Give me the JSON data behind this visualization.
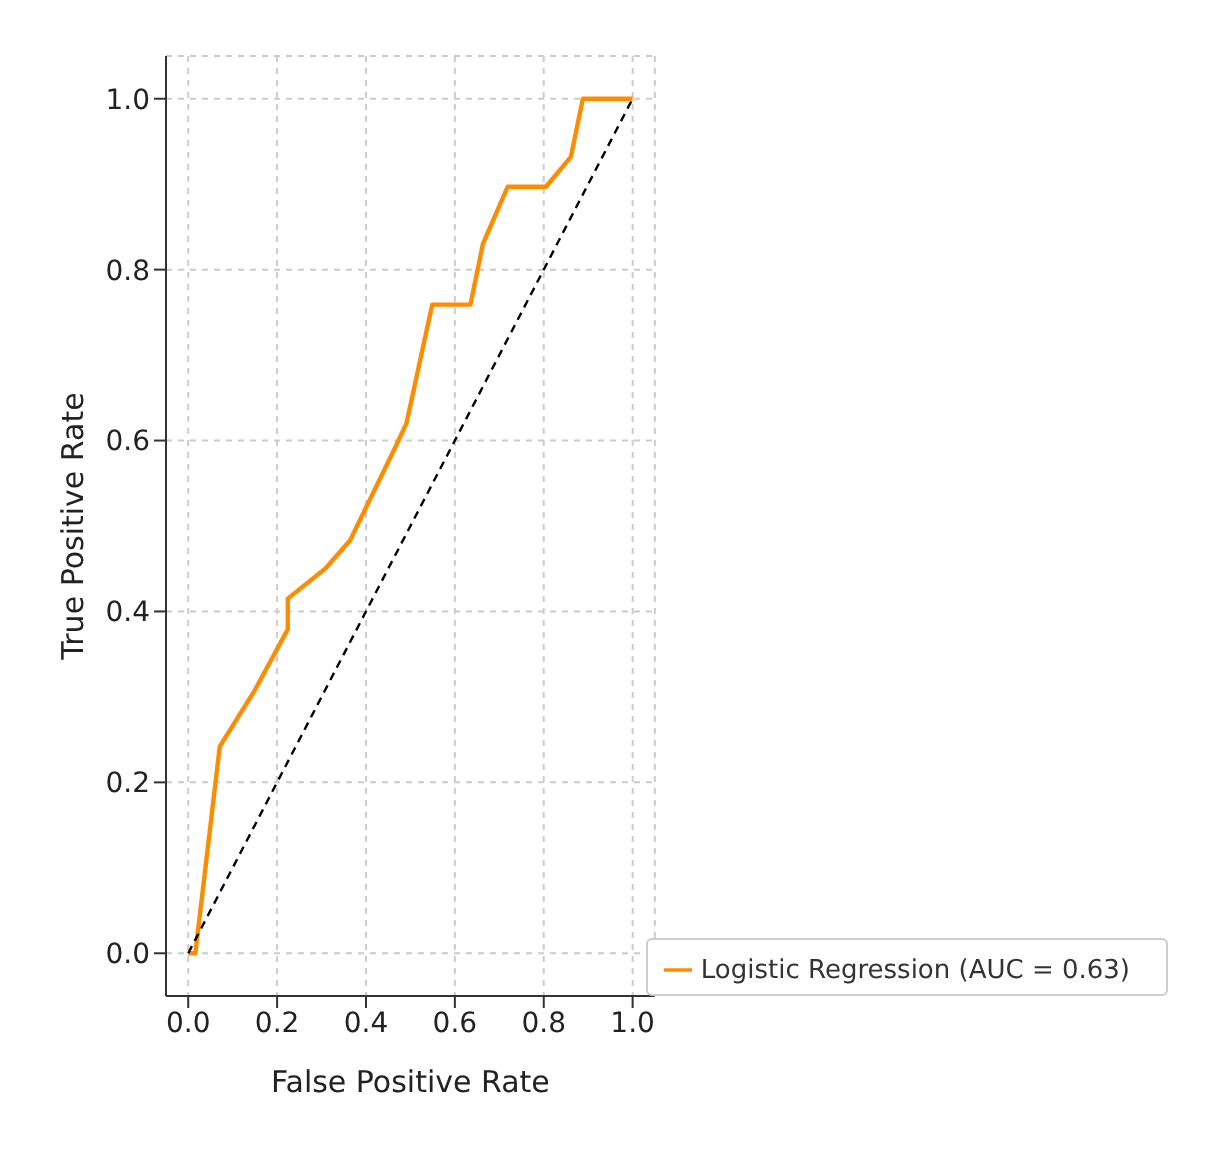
{
  "chart_data": {
    "type": "line",
    "xlabel": "False Positive Rate",
    "ylabel": "True Positive Rate",
    "xlim": [
      -0.05,
      1.05
    ],
    "ylim": [
      -0.05,
      1.05
    ],
    "xticks": [
      {
        "value": 0,
        "label": "0.0"
      },
      {
        "value": 0.2,
        "label": "0.2"
      },
      {
        "value": 0.4,
        "label": "0.4"
      },
      {
        "value": 0.6,
        "label": "0.6"
      },
      {
        "value": 0.8,
        "label": "0.8"
      },
      {
        "value": 1,
        "label": "1.0"
      }
    ],
    "yticks": [
      {
        "value": 0,
        "label": "0.0"
      },
      {
        "value": 0.2,
        "label": "0.2"
      },
      {
        "value": 0.4,
        "label": "0.4"
      },
      {
        "value": 0.6,
        "label": "0.6"
      },
      {
        "value": 0.8,
        "label": "0.8"
      },
      {
        "value": 1,
        "label": "1.0"
      }
    ],
    "grid": true,
    "legend": "bottom right",
    "marker": "none",
    "series": [
      {
        "name": "Logistic Regression (AUC = 0.63)",
        "color": "#ff8c00",
        "line_style": "solid",
        "x": [
          0,
          0.016,
          0.071,
          0.15,
          0.224,
          0.224,
          0.308,
          0.364,
          0.463,
          0.491,
          0.549,
          0.635,
          0.663,
          0.719,
          0.805,
          0.861,
          0.888,
          1
        ],
        "values": [
          0,
          0,
          0.242,
          0.308,
          0.379,
          0.415,
          0.45,
          0.483,
          0.589,
          0.62,
          0.759,
          0.759,
          0.83,
          0.897,
          0.897,
          0.932,
          1,
          1
        ]
      },
      {
        "color": "#000000",
        "line_style": "dashed",
        "x": [
          0,
          1
        ],
        "values": [
          0,
          1
        ]
      }
    ]
  }
}
